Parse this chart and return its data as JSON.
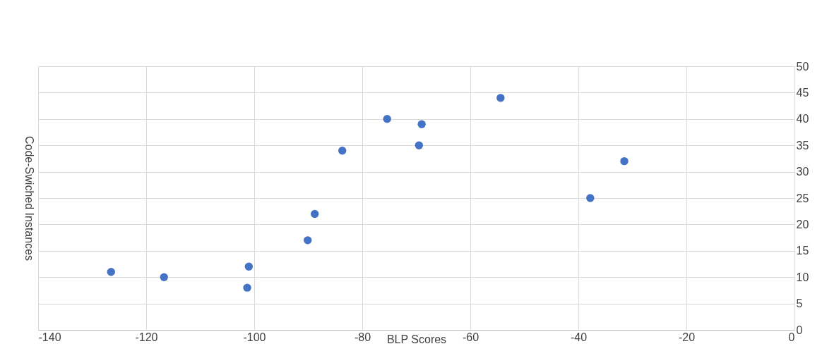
{
  "chart_data": {
    "type": "scatter",
    "xlabel": "BLP Scores",
    "ylabel": "Code-Swiched Instances",
    "x": [
      -126.5,
      -116.7,
      -101,
      -101.3,
      -90.1,
      -88.8,
      -83.7,
      -75.4,
      -69,
      -69.5,
      -54.4,
      -37.8,
      -31.5
    ],
    "series": [
      {
        "color": "#4472c4",
        "values": [
          11,
          10,
          12,
          8,
          17,
          22,
          34,
          40,
          39,
          35,
          44,
          25,
          32
        ]
      }
    ],
    "xlim": [
      -140,
      0
    ],
    "xticks": [
      -140,
      -120,
      -100,
      -80,
      -60,
      -40,
      -20,
      0
    ],
    "ylim": [
      0,
      50
    ],
    "yticks": [
      0,
      5,
      10,
      15,
      20,
      25,
      30,
      35,
      40,
      45,
      50
    ],
    "grid": true,
    "marker": "circle"
  }
}
